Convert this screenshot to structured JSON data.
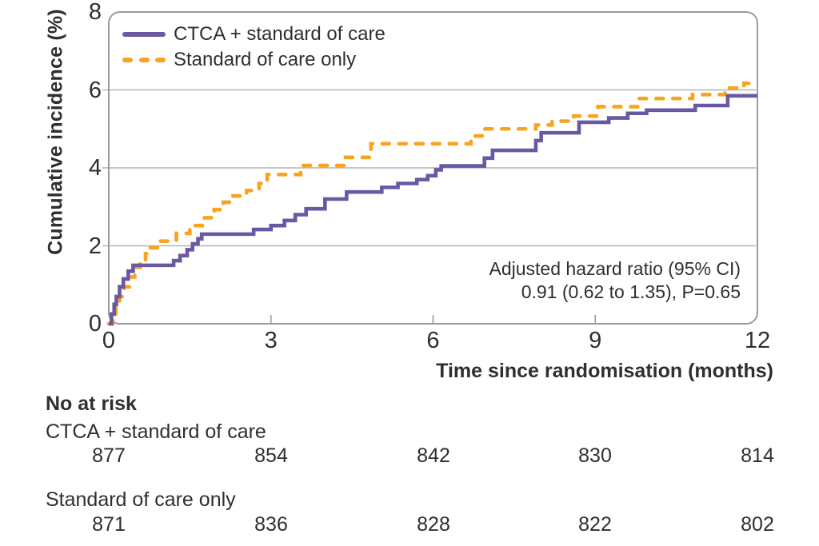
{
  "chart": {
    "accent_purple": "#6a58a2",
    "accent_orange": "#f8a41e",
    "grid_color": "#b4b4b4",
    "border_color": "#9b9b9b",
    "text_color": "#2f2f2f"
  },
  "chart_data": {
    "type": "line",
    "subtype": "step",
    "title": "",
    "xlabel": "Time since randomisation (months)",
    "ylabel": "Cumulative incidence (%)",
    "xlim": [
      0,
      12
    ],
    "ylim": [
      0,
      8
    ],
    "xticks": [
      0,
      3,
      6,
      9,
      12
    ],
    "yticks": [
      0,
      2,
      4,
      6,
      8
    ],
    "grid": "horizontal-only",
    "legend_position": "top-left",
    "annotations": [
      "Adjusted hazard ratio (95% CI)",
      "0.91 (0.62 to 1.35), P=0.65"
    ],
    "series": [
      {
        "name": "CTCA + standard of care",
        "color": "#6a58a2",
        "dash": "solid",
        "points": [
          [
            0,
            0
          ],
          [
            0.05,
            0.25
          ],
          [
            0.1,
            0.5
          ],
          [
            0.14,
            0.7
          ],
          [
            0.2,
            0.95
          ],
          [
            0.27,
            1.15
          ],
          [
            0.36,
            1.35
          ],
          [
            0.45,
            1.5
          ],
          [
            1.2,
            1.62
          ],
          [
            1.32,
            1.75
          ],
          [
            1.45,
            1.9
          ],
          [
            1.55,
            2.05
          ],
          [
            1.65,
            2.18
          ],
          [
            1.72,
            2.3
          ],
          [
            2.68,
            2.42
          ],
          [
            3.0,
            2.52
          ],
          [
            3.25,
            2.65
          ],
          [
            3.45,
            2.8
          ],
          [
            3.65,
            2.95
          ],
          [
            4.0,
            3.2
          ],
          [
            4.4,
            3.38
          ],
          [
            5.05,
            3.5
          ],
          [
            5.35,
            3.6
          ],
          [
            5.7,
            3.7
          ],
          [
            5.9,
            3.8
          ],
          [
            6.05,
            3.95
          ],
          [
            6.15,
            4.05
          ],
          [
            6.95,
            4.25
          ],
          [
            7.1,
            4.45
          ],
          [
            7.9,
            4.7
          ],
          [
            8.0,
            4.9
          ],
          [
            8.7,
            5.17
          ],
          [
            9.25,
            5.28
          ],
          [
            9.6,
            5.4
          ],
          [
            9.95,
            5.48
          ],
          [
            10.85,
            5.6
          ],
          [
            11.45,
            5.85
          ],
          [
            12,
            5.85
          ]
        ]
      },
      {
        "name": "Standard of care only",
        "color": "#f8a41e",
        "dash": "dashed",
        "points": [
          [
            0,
            0
          ],
          [
            0.07,
            0.2
          ],
          [
            0.13,
            0.45
          ],
          [
            0.2,
            0.7
          ],
          [
            0.28,
            0.95
          ],
          [
            0.38,
            1.2
          ],
          [
            0.48,
            1.45
          ],
          [
            0.58,
            1.62
          ],
          [
            0.68,
            1.8
          ],
          [
            0.75,
            1.95
          ],
          [
            0.95,
            2.12
          ],
          [
            1.25,
            2.32
          ],
          [
            1.5,
            2.52
          ],
          [
            1.73,
            2.72
          ],
          [
            1.95,
            2.93
          ],
          [
            2.12,
            3.12
          ],
          [
            2.3,
            3.28
          ],
          [
            2.55,
            3.42
          ],
          [
            2.78,
            3.6
          ],
          [
            2.93,
            3.83
          ],
          [
            3.55,
            4.06
          ],
          [
            4.38,
            4.27
          ],
          [
            4.85,
            4.62
          ],
          [
            6.7,
            4.82
          ],
          [
            6.95,
            5.0
          ],
          [
            7.9,
            5.1
          ],
          [
            8.2,
            5.2
          ],
          [
            8.6,
            5.33
          ],
          [
            9.05,
            5.57
          ],
          [
            9.8,
            5.78
          ],
          [
            10.8,
            5.88
          ],
          [
            11.4,
            6.05
          ],
          [
            11.75,
            6.17
          ],
          [
            12,
            6.17
          ]
        ]
      }
    ]
  },
  "risk_table": {
    "title": "No at risk",
    "rows": [
      {
        "label": "CTCA + standard of care",
        "counts": [
          "877",
          "854",
          "842",
          "830",
          "814"
        ]
      },
      {
        "label": "Standard of care only",
        "counts": [
          "871",
          "836",
          "828",
          "822",
          "802"
        ]
      }
    ]
  }
}
